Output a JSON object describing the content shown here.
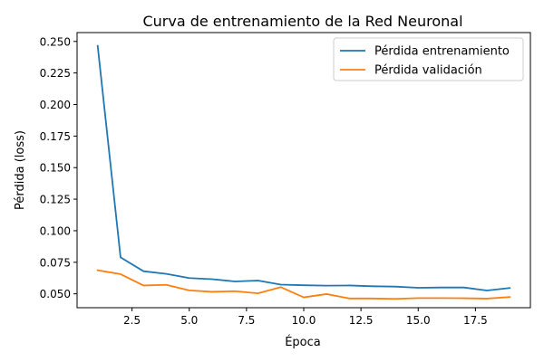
{
  "chart_data": {
    "type": "line",
    "title": "Curva de entrenamiento de la Red Neuronal",
    "xlabel": "Época",
    "ylabel": "Pérdida (loss)",
    "xlim": [
      0.1,
      19.9
    ],
    "ylim": [
      0.039,
      0.257
    ],
    "xticks": [
      2.5,
      5.0,
      7.5,
      10.0,
      12.5,
      15.0,
      17.5
    ],
    "xtick_labels": [
      "2.5",
      "5.0",
      "7.5",
      "10.0",
      "12.5",
      "15.0",
      "17.5"
    ],
    "yticks": [
      0.05,
      0.075,
      0.1,
      0.125,
      0.15,
      0.175,
      0.2,
      0.225,
      0.25
    ],
    "ytick_labels": [
      "0.050",
      "0.075",
      "0.100",
      "0.125",
      "0.150",
      "0.175",
      "0.200",
      "0.225",
      "0.250"
    ],
    "grid": false,
    "legend_position": "top-right",
    "x": [
      1,
      2,
      3,
      4,
      5,
      6,
      7,
      8,
      9,
      10,
      11,
      12,
      13,
      14,
      15,
      16,
      17,
      18,
      19
    ],
    "series": [
      {
        "name": "Pérdida entrenamiento",
        "color": "#1f77b4",
        "values": [
          0.2465,
          0.0789,
          0.0679,
          0.0658,
          0.0625,
          0.0616,
          0.0598,
          0.0605,
          0.0573,
          0.0568,
          0.0565,
          0.0566,
          0.056,
          0.0557,
          0.0548,
          0.055,
          0.055,
          0.0526,
          0.0546
        ]
      },
      {
        "name": "Pérdida validación",
        "color": "#ff7f0e",
        "values": [
          0.0687,
          0.0656,
          0.0566,
          0.0571,
          0.0527,
          0.0516,
          0.0521,
          0.0504,
          0.0553,
          0.0472,
          0.0498,
          0.0463,
          0.0463,
          0.046,
          0.0466,
          0.0466,
          0.0465,
          0.0462,
          0.0475
        ]
      }
    ]
  }
}
